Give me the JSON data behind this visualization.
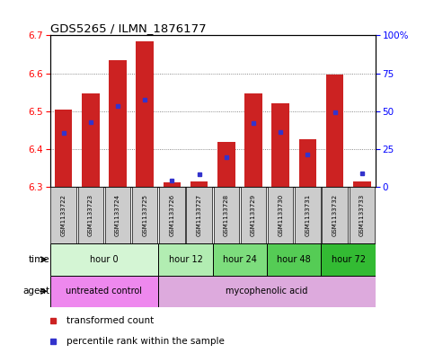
{
  "title": "GDS5265 / ILMN_1876177",
  "samples": [
    "GSM1133722",
    "GSM1133723",
    "GSM1133724",
    "GSM1133725",
    "GSM1133726",
    "GSM1133727",
    "GSM1133728",
    "GSM1133729",
    "GSM1133730",
    "GSM1133731",
    "GSM1133732",
    "GSM1133733"
  ],
  "bar_tops": [
    6.505,
    6.547,
    6.635,
    6.683,
    6.313,
    6.315,
    6.418,
    6.548,
    6.522,
    6.427,
    6.597,
    6.315
  ],
  "bar_bottom": 6.3,
  "blue_dot_y": [
    6.443,
    6.47,
    6.513,
    6.53,
    6.318,
    6.333,
    6.378,
    6.468,
    6.445,
    6.387,
    6.497,
    6.337
  ],
  "bar_color": "#cc2222",
  "dot_color": "#3333cc",
  "ylim": [
    6.3,
    6.7
  ],
  "yticks": [
    6.3,
    6.4,
    6.5,
    6.6,
    6.7
  ],
  "y2ticks": [
    0,
    25,
    50,
    75,
    100
  ],
  "y2labels": [
    "0",
    "25",
    "50",
    "75",
    "100%"
  ],
  "time_groups": [
    {
      "label": "hour 0",
      "start": 0,
      "end": 4,
      "color": "#d4f5d4"
    },
    {
      "label": "hour 12",
      "start": 4,
      "end": 6,
      "color": "#b2edb2"
    },
    {
      "label": "hour 24",
      "start": 6,
      "end": 8,
      "color": "#7ddd7d"
    },
    {
      "label": "hour 48",
      "start": 8,
      "end": 10,
      "color": "#55cc55"
    },
    {
      "label": "hour 72",
      "start": 10,
      "end": 12,
      "color": "#33bb33"
    }
  ],
  "agent_groups": [
    {
      "label": "untreated control",
      "start": 0,
      "end": 4,
      "color": "#ee88ee"
    },
    {
      "label": "mycophenolic acid",
      "start": 4,
      "end": 12,
      "color": "#ddaadd"
    }
  ],
  "bar_width": 0.65,
  "bg_color": "#ffffff",
  "sample_bg": "#cccccc",
  "grid_color": "#666666"
}
